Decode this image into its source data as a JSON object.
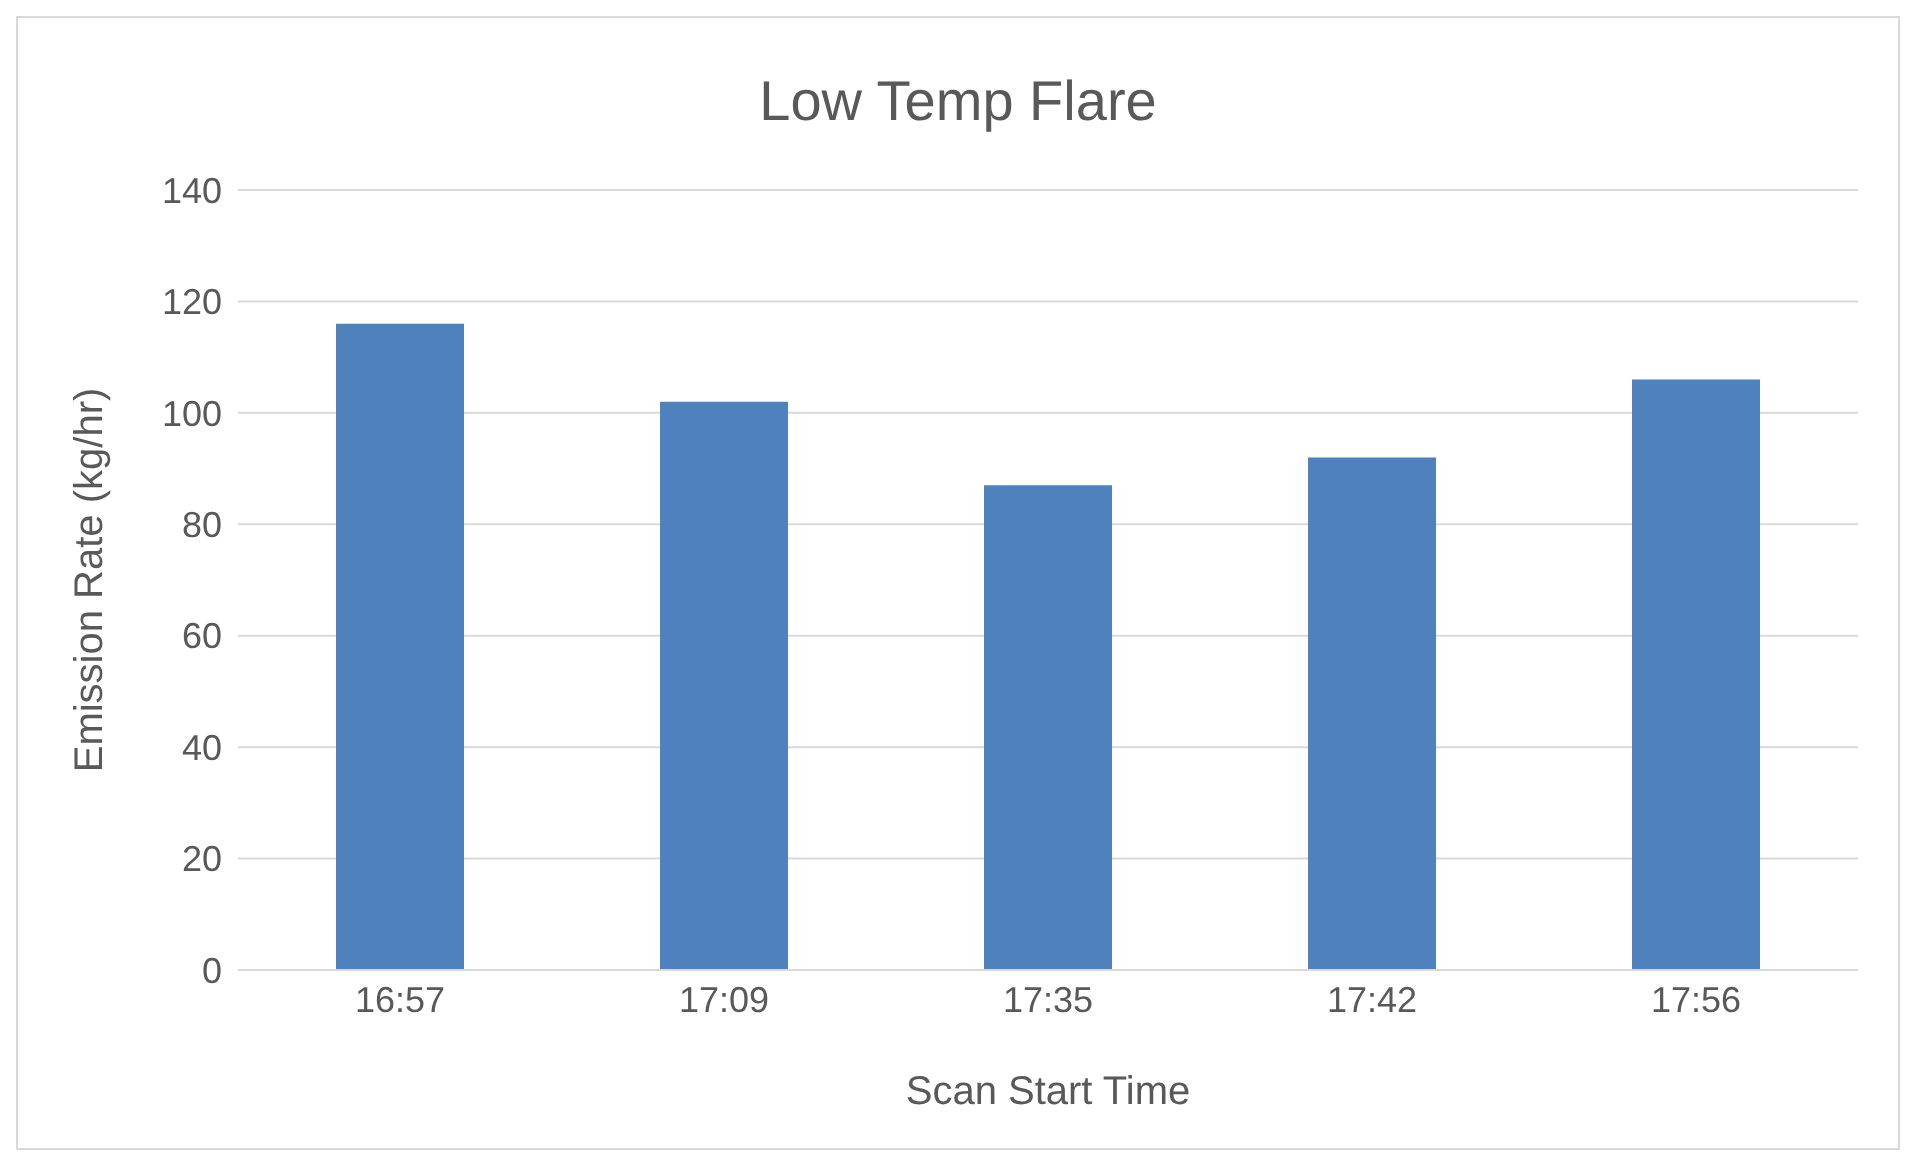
{
  "chart_data": {
    "type": "bar",
    "title": "Low Temp Flare",
    "xlabel": "Scan Start Time",
    "ylabel": "Emission Rate (kg/hr)",
    "categories": [
      "16:57",
      "17:09",
      "17:35",
      "17:42",
      "17:56"
    ],
    "values": [
      116,
      102,
      87,
      92,
      106
    ],
    "color": "#4f81bd",
    "ylim": [
      0,
      140
    ],
    "yticks": [
      0,
      20,
      40,
      60,
      80,
      100,
      120,
      140
    ],
    "grid": "y",
    "legend": false
  }
}
